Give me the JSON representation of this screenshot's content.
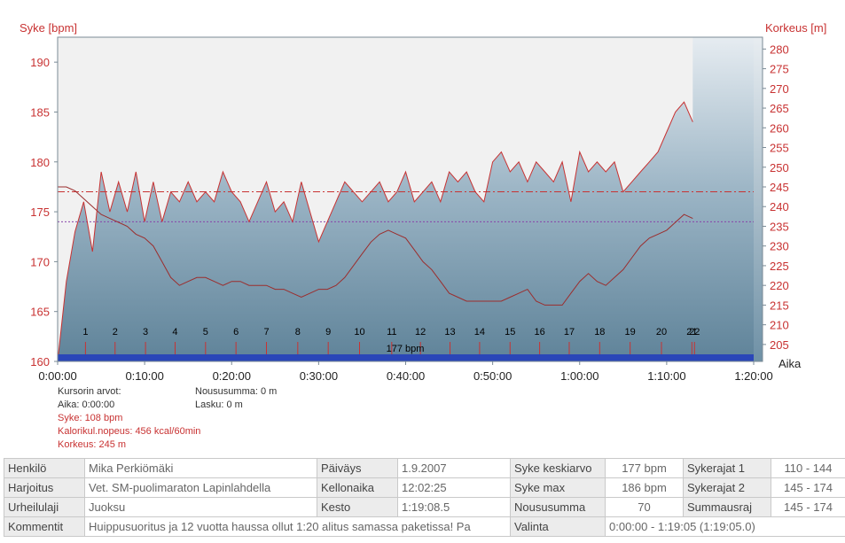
{
  "chart_data": {
    "type": "line",
    "left_axis": {
      "label": "Syke [bpm]",
      "ticks": [
        160,
        165,
        170,
        175,
        180,
        185,
        190
      ],
      "range": [
        160,
        192.5
      ]
    },
    "right_axis": {
      "label": "Korkeus [m]",
      "ticks": [
        205,
        210,
        215,
        220,
        225,
        230,
        235,
        240,
        245,
        250,
        255,
        260,
        265,
        270,
        275,
        280
      ],
      "range": [
        200.7,
        283
      ]
    },
    "x_axis": {
      "label": "Aika",
      "ticks": [
        "0:00:00",
        "0:10:00",
        "0:20:00",
        "0:30:00",
        "0:40:00",
        "0:50:00",
        "1:00:00",
        "1:10:00",
        "1:20:00"
      ],
      "range_min": [
        0,
        80
      ]
    },
    "km_markers": [
      "1",
      "2",
      "3",
      "4",
      "5",
      "6",
      "7",
      "8",
      "9",
      "10",
      "11",
      "12",
      "13",
      "14",
      "15",
      "16",
      "17",
      "18",
      "19",
      "20",
      "21",
      "22"
    ],
    "km_times_min": [
      3.2,
      6.6,
      10.1,
      13.5,
      17.0,
      20.5,
      24.0,
      27.6,
      31.1,
      34.7,
      38.4,
      41.7,
      45.1,
      48.5,
      52.0,
      55.4,
      58.8,
      62.3,
      65.8,
      69.4,
      72.9,
      73.2
    ],
    "reference_lines": [
      {
        "name": "average",
        "value": 177,
        "axis": "left",
        "color": "#c83232"
      },
      {
        "name": "lower",
        "value": 174,
        "axis": "left",
        "color": "#8844aa"
      }
    ],
    "progress_bar_label": "177 bpm",
    "series": [
      {
        "axis": "left",
        "color": "#c83232",
        "x_min": [
          0,
          1,
          2,
          3,
          4,
          5,
          6,
          7,
          8,
          9,
          10,
          11,
          12,
          13,
          14,
          15,
          16,
          17,
          18,
          19,
          20,
          21,
          22,
          23,
          24,
          25,
          26,
          27,
          28,
          29,
          30,
          31,
          32,
          33,
          34,
          35,
          36,
          37,
          38,
          39,
          40,
          41,
          42,
          43,
          44,
          45,
          46,
          47,
          48,
          49,
          50,
          51,
          52,
          53,
          54,
          55,
          56,
          57,
          58,
          59,
          60,
          61,
          62,
          63,
          64,
          65,
          66,
          67,
          68,
          69,
          70,
          71,
          72,
          73
        ],
        "values": [
          160,
          168,
          173,
          176,
          171,
          179,
          175,
          178,
          175,
          179,
          174,
          178,
          174,
          177,
          176,
          178,
          176,
          177,
          176,
          179,
          177,
          176,
          174,
          176,
          178,
          175,
          176,
          174,
          178,
          175,
          172,
          174,
          176,
          178,
          177,
          176,
          177,
          178,
          176,
          177,
          179,
          176,
          177,
          178,
          176,
          179,
          178,
          179,
          177,
          176,
          180,
          181,
          179,
          180,
          178,
          180,
          179,
          178,
          180,
          176,
          181,
          179,
          180,
          179,
          180,
          177,
          178,
          179,
          180,
          181,
          183,
          185,
          186,
          184
        ]
      },
      {
        "axis": "right",
        "color": "#9b2d2d",
        "x_min": [
          0,
          1,
          2,
          3,
          4,
          5,
          6,
          7,
          8,
          9,
          10,
          11,
          12,
          13,
          14,
          15,
          16,
          17,
          18,
          19,
          20,
          21,
          22,
          23,
          24,
          25,
          26,
          27,
          28,
          29,
          30,
          31,
          32,
          33,
          34,
          35,
          36,
          37,
          38,
          39,
          40,
          41,
          42,
          43,
          44,
          45,
          46,
          47,
          48,
          49,
          50,
          51,
          52,
          53,
          54,
          55,
          56,
          57,
          58,
          59,
          60,
          61,
          62,
          63,
          64,
          65,
          66,
          67,
          68,
          69,
          70,
          71,
          72,
          73
        ],
        "values": [
          245,
          245,
          244,
          242,
          240,
          238,
          237,
          236,
          235,
          233,
          232,
          230,
          226,
          222,
          220,
          221,
          222,
          222,
          221,
          220,
          221,
          221,
          220,
          220,
          220,
          219,
          219,
          218,
          217,
          218,
          219,
          219,
          220,
          222,
          225,
          228,
          231,
          233,
          234,
          233,
          232,
          229,
          226,
          224,
          221,
          218,
          217,
          216,
          216,
          216,
          216,
          216,
          217,
          218,
          219,
          216,
          215,
          215,
          215,
          218,
          221,
          223,
          221,
          220,
          222,
          224,
          227,
          230,
          232,
          233,
          234,
          236,
          238,
          237
        ]
      }
    ]
  },
  "cursor": {
    "title": "Kursorin arvot:",
    "time": "Aika: 0:00:00",
    "hr": "Syke: 108 bpm",
    "calories": "Kalorikul.nopeus: 456 kcal/60min",
    "altitude": "Korkeus: 245 m",
    "ascent": "Noususumma: 0 m",
    "descent": "Lasku: 0 m"
  },
  "info": {
    "henkilo_label": "Henkilö",
    "henkilo": "Mika Perkiömäki",
    "paivays_label": "Päiväys",
    "paivays": "1.9.2007",
    "syke_ka_label": "Syke keskiarvo",
    "syke_ka": "177 bpm",
    "sykerajat1_label": "Sykerajat 1",
    "sykerajat1": "110 - 144",
    "harjoitus_label": "Harjoitus",
    "harjoitus": "Vet. SM-puolimaraton Lapinlahdella",
    "kellonaika_label": "Kellonaika",
    "kellonaika": "12:02:25",
    "syke_max_label": "Syke max",
    "syke_max": "186 bpm",
    "sykerajat2_label": "Sykerajat 2",
    "sykerajat2": "145 - 174",
    "urheilulaji_label": "Urheilulaji",
    "urheilulaji": "Juoksu",
    "kesto_label": "Kesto",
    "kesto": "1:19:08.5",
    "noususumma_label": "Noususumma",
    "noususumma": "70",
    "summausraj_label": "Summausraj",
    "summausraj": "145 - 174",
    "kommentit_label": "Kommentit",
    "kommentit": "Huippusuoritus ja 12 vuotta haussa ollut 1:20 alitus samassa paketissa! Pa",
    "valinta_label": "Valinta",
    "valinta": "0:00:00 - 1:19:05 (1:19:05.0)"
  }
}
